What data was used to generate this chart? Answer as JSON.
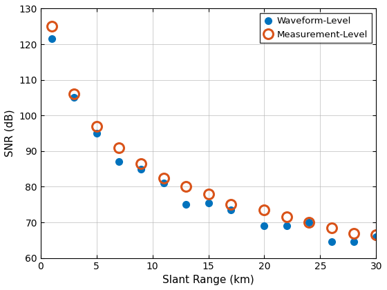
{
  "waveform_x": [
    1,
    3,
    5,
    7,
    9,
    11,
    13,
    15,
    17,
    20,
    22,
    24,
    26,
    28,
    30
  ],
  "waveform_y": [
    121.5,
    105.0,
    95.0,
    87.0,
    85.0,
    81.0,
    75.0,
    75.5,
    73.5,
    69.0,
    69.0,
    70.0,
    64.5,
    64.5,
    66.0
  ],
  "measurement_x": [
    1,
    3,
    5,
    7,
    9,
    11,
    13,
    15,
    17,
    20,
    22,
    24,
    26,
    28,
    30
  ],
  "measurement_y": [
    125.0,
    106.0,
    97.0,
    91.0,
    86.5,
    82.5,
    80.0,
    78.0,
    75.0,
    73.5,
    71.5,
    70.0,
    68.5,
    67.0,
    66.5
  ],
  "waveform_color": "#0072BD",
  "measurement_color": "#D95319",
  "xlabel": "Slant Range (km)",
  "ylabel": "SNR (dB)",
  "xlim": [
    0,
    30
  ],
  "ylim": [
    60,
    130
  ],
  "yticks": [
    60,
    70,
    80,
    90,
    100,
    110,
    120,
    130
  ],
  "xticks": [
    0,
    5,
    10,
    15,
    20,
    25,
    30
  ],
  "legend_labels": [
    "Waveform-Level",
    "Measurement-Level"
  ],
  "background_color": "#ffffff",
  "grid_color": "#b0b0b0"
}
